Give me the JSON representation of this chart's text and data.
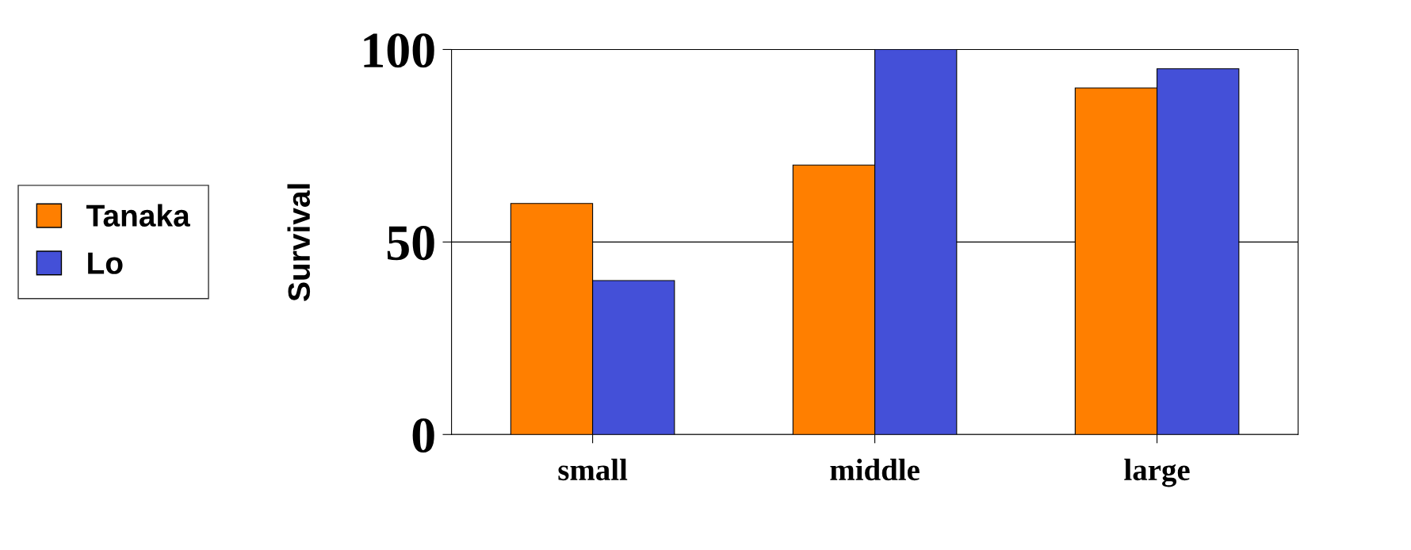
{
  "chart_data": {
    "type": "bar",
    "ylabel": "Survival",
    "categories": [
      "small",
      "middle",
      "large"
    ],
    "series": [
      {
        "name": "Tanaka",
        "color": "#ff7f00",
        "values": [
          60,
          70,
          90
        ]
      },
      {
        "name": "Lo",
        "color": "#4450d8",
        "values": [
          40,
          100,
          95
        ]
      }
    ],
    "ylim": [
      0,
      100
    ],
    "yticks": [
      0,
      50,
      100
    ],
    "grid": "y",
    "legend": "left"
  }
}
